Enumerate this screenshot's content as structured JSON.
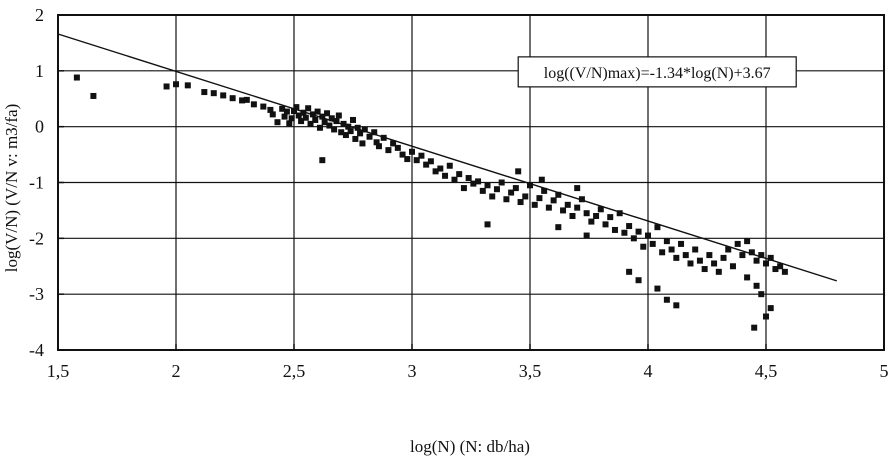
{
  "chart_data": {
    "type": "scatter",
    "title": "",
    "xlabel": "log(N) (N: db/ha)",
    "ylabel": "log(V/N) (V/N v: m3/fa)",
    "xlim": [
      1.5,
      5
    ],
    "ylim": [
      -4,
      2
    ],
    "xticks": [
      1.5,
      2,
      2.5,
      3,
      3.5,
      4,
      4.5,
      5
    ],
    "yticks": [
      -4,
      -3,
      -2,
      -1,
      0,
      1,
      2
    ],
    "xtick_labels": [
      "1,5",
      "2",
      "2,5",
      "3",
      "3,5",
      "4",
      "4,5",
      "5"
    ],
    "ytick_labels": [
      "-4",
      "-3",
      "-2",
      "-1",
      "0",
      "1",
      "2"
    ],
    "grid": true,
    "annotation": "log((V/N)max)=-1.34*log(N)+3.67",
    "line": {
      "slope": -1.34,
      "intercept": 3.67,
      "x_from": 1.5,
      "x_to": 4.8
    },
    "points": [
      [
        1.58,
        0.88
      ],
      [
        1.65,
        0.55
      ],
      [
        1.96,
        0.72
      ],
      [
        2.0,
        0.76
      ],
      [
        2.05,
        0.74
      ],
      [
        2.12,
        0.62
      ],
      [
        2.16,
        0.6
      ],
      [
        2.2,
        0.56
      ],
      [
        2.24,
        0.51
      ],
      [
        2.28,
        0.47
      ],
      [
        2.3,
        0.48
      ],
      [
        2.33,
        0.4
      ],
      [
        2.37,
        0.36
      ],
      [
        2.4,
        0.3
      ],
      [
        2.41,
        0.22
      ],
      [
        2.43,
        0.08
      ],
      [
        2.45,
        0.32
      ],
      [
        2.46,
        0.18
      ],
      [
        2.47,
        0.27
      ],
      [
        2.48,
        0.06
      ],
      [
        2.49,
        0.15
      ],
      [
        2.5,
        0.28
      ],
      [
        2.51,
        0.35
      ],
      [
        2.52,
        0.2
      ],
      [
        2.53,
        0.1
      ],
      [
        2.54,
        0.25
      ],
      [
        2.55,
        0.16
      ],
      [
        2.56,
        0.33
      ],
      [
        2.57,
        0.05
      ],
      [
        2.58,
        0.22
      ],
      [
        2.59,
        0.12
      ],
      [
        2.6,
        0.27
      ],
      [
        2.61,
        -0.02
      ],
      [
        2.62,
        0.18
      ],
      [
        2.63,
        0.08
      ],
      [
        2.64,
        0.24
      ],
      [
        2.65,
        0.02
      ],
      [
        2.66,
        0.15
      ],
      [
        2.67,
        -0.05
      ],
      [
        2.68,
        0.1
      ],
      [
        2.69,
        0.2
      ],
      [
        2.7,
        -0.1
      ],
      [
        2.71,
        0.05
      ],
      [
        2.72,
        -0.15
      ],
      [
        2.73,
        0.0
      ],
      [
        2.74,
        -0.08
      ],
      [
        2.75,
        0.12
      ],
      [
        2.76,
        -0.22
      ],
      [
        2.77,
        -0.02
      ],
      [
        2.78,
        -0.12
      ],
      [
        2.79,
        -0.3
      ],
      [
        2.8,
        -0.05
      ],
      [
        2.82,
        -0.18
      ],
      [
        2.84,
        -0.1
      ],
      [
        2.85,
        -0.28
      ],
      [
        2.86,
        -0.35
      ],
      [
        2.88,
        -0.2
      ],
      [
        2.9,
        -0.42
      ],
      [
        2.92,
        -0.3
      ],
      [
        2.94,
        -0.38
      ],
      [
        2.96,
        -0.5
      ],
      [
        2.98,
        -0.58
      ],
      [
        3.0,
        -0.45
      ],
      [
        3.02,
        -0.6
      ],
      [
        3.04,
        -0.52
      ],
      [
        3.06,
        -0.68
      ],
      [
        3.08,
        -0.62
      ],
      [
        3.1,
        -0.8
      ],
      [
        3.12,
        -0.75
      ],
      [
        3.14,
        -0.88
      ],
      [
        3.16,
        -0.7
      ],
      [
        3.18,
        -0.95
      ],
      [
        3.2,
        -0.85
      ],
      [
        3.22,
        -1.1
      ],
      [
        3.24,
        -0.92
      ],
      [
        3.26,
        -1.02
      ],
      [
        3.28,
        -0.98
      ],
      [
        3.3,
        -1.15
      ],
      [
        3.32,
        -1.05
      ],
      [
        3.34,
        -1.25
      ],
      [
        3.36,
        -1.12
      ],
      [
        3.38,
        -1.0
      ],
      [
        3.4,
        -1.3
      ],
      [
        3.42,
        -1.18
      ],
      [
        3.44,
        -1.1
      ],
      [
        3.46,
        -1.35
      ],
      [
        3.48,
        -1.25
      ],
      [
        3.5,
        -1.05
      ],
      [
        3.52,
        -1.4
      ],
      [
        3.54,
        -1.28
      ],
      [
        3.56,
        -1.15
      ],
      [
        3.58,
        -1.45
      ],
      [
        3.6,
        -1.32
      ],
      [
        3.62,
        -1.22
      ],
      [
        3.64,
        -1.5
      ],
      [
        3.66,
        -1.4
      ],
      [
        3.68,
        -1.6
      ],
      [
        3.7,
        -1.45
      ],
      [
        3.72,
        -1.3
      ],
      [
        3.74,
        -1.55
      ],
      [
        3.76,
        -1.7
      ],
      [
        3.78,
        -1.6
      ],
      [
        3.8,
        -1.48
      ],
      [
        3.82,
        -1.75
      ],
      [
        3.84,
        -1.62
      ],
      [
        3.86,
        -1.85
      ],
      [
        3.88,
        -1.55
      ],
      [
        3.9,
        -1.9
      ],
      [
        3.92,
        -1.78
      ],
      [
        3.94,
        -2.0
      ],
      [
        3.96,
        -1.88
      ],
      [
        3.98,
        -2.15
      ],
      [
        4.0,
        -1.95
      ],
      [
        4.02,
        -2.1
      ],
      [
        4.04,
        -1.8
      ],
      [
        4.06,
        -2.25
      ],
      [
        4.08,
        -2.05
      ],
      [
        4.1,
        -2.2
      ],
      [
        4.12,
        -2.35
      ],
      [
        4.14,
        -2.1
      ],
      [
        4.16,
        -2.3
      ],
      [
        4.18,
        -2.45
      ],
      [
        4.2,
        -2.2
      ],
      [
        4.22,
        -2.4
      ],
      [
        4.24,
        -2.55
      ],
      [
        4.26,
        -2.3
      ],
      [
        4.28,
        -2.45
      ],
      [
        4.3,
        -2.6
      ],
      [
        4.32,
        -2.35
      ],
      [
        4.34,
        -2.2
      ],
      [
        4.36,
        -2.5
      ],
      [
        4.38,
        -2.1
      ],
      [
        4.4,
        -2.3
      ],
      [
        4.42,
        -2.05
      ],
      [
        4.44,
        -2.25
      ],
      [
        4.46,
        -2.4
      ],
      [
        4.48,
        -2.3
      ],
      [
        4.5,
        -2.45
      ],
      [
        4.52,
        -2.35
      ],
      [
        4.54,
        -2.55
      ],
      [
        4.56,
        -2.5
      ],
      [
        4.58,
        -2.6
      ],
      [
        4.42,
        -2.7
      ],
      [
        4.46,
        -2.85
      ],
      [
        4.48,
        -3.0
      ],
      [
        4.5,
        -3.4
      ],
      [
        4.52,
        -3.25
      ],
      [
        4.45,
        -3.6
      ],
      [
        2.62,
        -0.6
      ],
      [
        3.32,
        -1.75
      ],
      [
        3.92,
        -2.6
      ],
      [
        3.96,
        -2.75
      ],
      [
        4.04,
        -2.9
      ],
      [
        4.08,
        -3.1
      ],
      [
        4.12,
        -3.2
      ],
      [
        3.55,
        -0.95
      ],
      [
        3.7,
        -1.1
      ],
      [
        3.45,
        -0.8
      ],
      [
        3.62,
        -1.8
      ],
      [
        3.74,
        -1.95
      ]
    ]
  }
}
